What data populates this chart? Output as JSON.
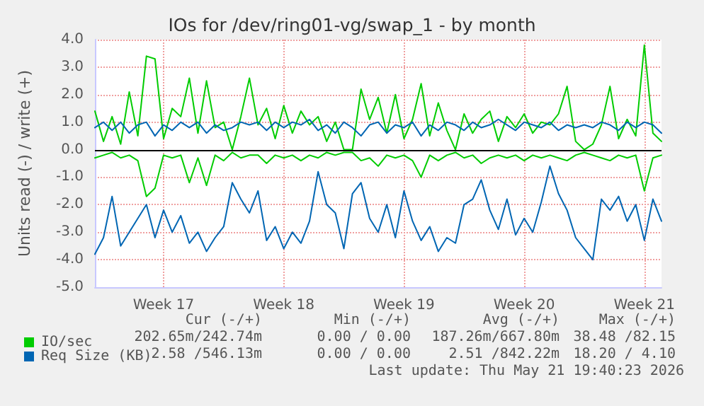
{
  "chart_data": {
    "type": "line",
    "title": "IOs for /dev/ring01-vg/swap_1 - by month",
    "ylabel": "Units read (-) / write (+)",
    "categories": [
      null,
      null,
      null,
      null,
      null,
      null,
      null,
      null,
      "Week 17",
      null,
      null,
      null,
      null,
      null,
      null,
      null,
      null,
      null,
      null,
      null,
      null,
      null,
      "Week 18",
      null,
      null,
      null,
      null,
      null,
      null,
      null,
      null,
      null,
      null,
      null,
      null,
      null,
      "Week 19",
      null,
      null,
      null,
      null,
      null,
      null,
      null,
      null,
      null,
      null,
      null,
      null,
      null,
      "Week 20",
      null,
      null,
      null,
      null,
      null,
      null,
      null,
      null,
      null,
      null,
      null,
      null,
      null,
      "Week 21",
      null,
      null
    ],
    "ylim": [
      -5,
      4
    ],
    "yticks": [
      {
        "value": -5,
        "label": "-5.0"
      },
      {
        "value": -4,
        "label": "-4.0"
      },
      {
        "value": -3,
        "label": "-3.0"
      },
      {
        "value": -2,
        "label": "-2.0"
      },
      {
        "value": -1,
        "label": "-1.0"
      },
      {
        "value": 0,
        "label": "0.0"
      },
      {
        "value": 1,
        "label": "1.0"
      },
      {
        "value": 2,
        "label": "2.0"
      },
      {
        "value": 3,
        "label": "3.0"
      },
      {
        "value": 4,
        "label": "4.0"
      }
    ],
    "series": [
      {
        "name": "IO/sec",
        "color": "#00cc00",
        "values": [
          1.4,
          0.3,
          1.2,
          0.2,
          2.1,
          0.5,
          3.4,
          3.3,
          0.4,
          1.5,
          1.2,
          2.6,
          0.6,
          2.5,
          0.8,
          1.0,
          0.0,
          1.2,
          2.6,
          0.9,
          1.5,
          0.4,
          1.6,
          0.6,
          1.4,
          0.9,
          1.2,
          0.3,
          1.0,
          0.0,
          0.0,
          2.2,
          1.1,
          1.9,
          0.6,
          2.0,
          0.4,
          1.1,
          2.4,
          0.5,
          1.7,
          0.7,
          0.0,
          1.3,
          0.6,
          1.1,
          1.4,
          0.3,
          1.2,
          0.8,
          1.3,
          0.6,
          1.0,
          0.9,
          1.3,
          2.3,
          0.3,
          0.0,
          0.2,
          0.9,
          2.3,
          0.4,
          1.1,
          0.5,
          3.8,
          0.6,
          0.3
        ]
      },
      {
        "color": "#00cc00",
        "values": [
          -0.3,
          -0.2,
          -0.1,
          -0.3,
          -0.2,
          -0.4,
          -1.7,
          -1.4,
          -0.2,
          -0.3,
          -0.2,
          -1.2,
          -0.3,
          -1.3,
          -0.2,
          -0.4,
          -0.1,
          -0.3,
          -0.2,
          -0.2,
          -0.5,
          -0.2,
          -0.3,
          -0.2,
          -0.4,
          -0.2,
          -0.3,
          -0.1,
          -0.2,
          -0.1,
          -0.1,
          -0.4,
          -0.3,
          -0.6,
          -0.2,
          -0.3,
          -0.2,
          -0.4,
          -1.0,
          -0.2,
          -0.4,
          -0.2,
          -0.1,
          -0.3,
          -0.2,
          -0.5,
          -0.3,
          -0.2,
          -0.3,
          -0.2,
          -0.4,
          -0.2,
          -0.3,
          -0.2,
          -0.3,
          -0.4,
          -0.2,
          -0.1,
          -0.2,
          -0.3,
          -0.4,
          -0.2,
          -0.3,
          -0.2,
          -1.5,
          -0.3,
          -0.2
        ]
      },
      {
        "name": "Req Size (KB)",
        "color": "#0066b3",
        "values": [
          0.8,
          1.0,
          0.7,
          1.0,
          0.6,
          0.9,
          1.0,
          0.5,
          0.9,
          0.7,
          1.0,
          0.8,
          1.0,
          0.6,
          0.9,
          0.7,
          0.8,
          1.0,
          0.9,
          1.0,
          0.7,
          1.0,
          0.8,
          1.0,
          0.9,
          1.1,
          0.7,
          0.9,
          0.6,
          1.0,
          0.8,
          0.5,
          0.9,
          1.0,
          0.6,
          0.9,
          0.8,
          1.0,
          0.5,
          0.9,
          0.7,
          1.0,
          0.9,
          0.7,
          1.0,
          0.8,
          0.9,
          1.1,
          0.9,
          0.7,
          1.0,
          0.9,
          0.8,
          1.0,
          0.7,
          0.9,
          0.8,
          0.9,
          0.8,
          1.0,
          0.9,
          0.7,
          1.0,
          0.8,
          1.0,
          0.9,
          0.6
        ]
      },
      {
        "color": "#0066b3",
        "values": [
          -3.8,
          -3.2,
          -1.7,
          -3.5,
          -3.0,
          -2.5,
          -2.0,
          -3.2,
          -2.2,
          -3.0,
          -2.4,
          -3.4,
          -3.0,
          -3.7,
          -3.2,
          -2.8,
          -1.2,
          -1.8,
          -2.3,
          -1.5,
          -3.3,
          -2.8,
          -3.6,
          -3.0,
          -3.4,
          -2.6,
          -0.8,
          -2.0,
          -2.3,
          -3.6,
          -1.6,
          -1.2,
          -2.5,
          -3.0,
          -2.0,
          -3.2,
          -1.5,
          -2.6,
          -3.3,
          -2.8,
          -3.7,
          -3.2,
          -3.4,
          -2.0,
          -1.8,
          -1.1,
          -2.2,
          -2.9,
          -1.8,
          -3.1,
          -2.5,
          -3.0,
          -1.9,
          -0.6,
          -1.6,
          -2.2,
          -3.2,
          -3.6,
          -4.0,
          -1.8,
          -2.2,
          -1.7,
          -2.6,
          -2.0,
          -3.3,
          -1.8,
          -2.6
        ]
      }
    ],
    "ref_lines": [
      {
        "axis": "y",
        "value": 0,
        "color": "#000000"
      }
    ],
    "grid": true,
    "legend": "bottom left",
    "marker": "none",
    "line_style": "solid",
    "annotations": [
      "Cur (-/+)",
      "Min (-/+)",
      "Avg (-/+)",
      "Max (-/+)",
      "202.65m/242.74m",
      "0.00 / 0.00",
      "187.26m/667.80m",
      "38.48 /82.15",
      "2.58 /546.13m",
      "0.00 / 0.00",
      "2.51 /842.22m",
      "18.20 / 4.10",
      "Last update: Thu May 21 19:40:23 2026"
    ]
  }
}
